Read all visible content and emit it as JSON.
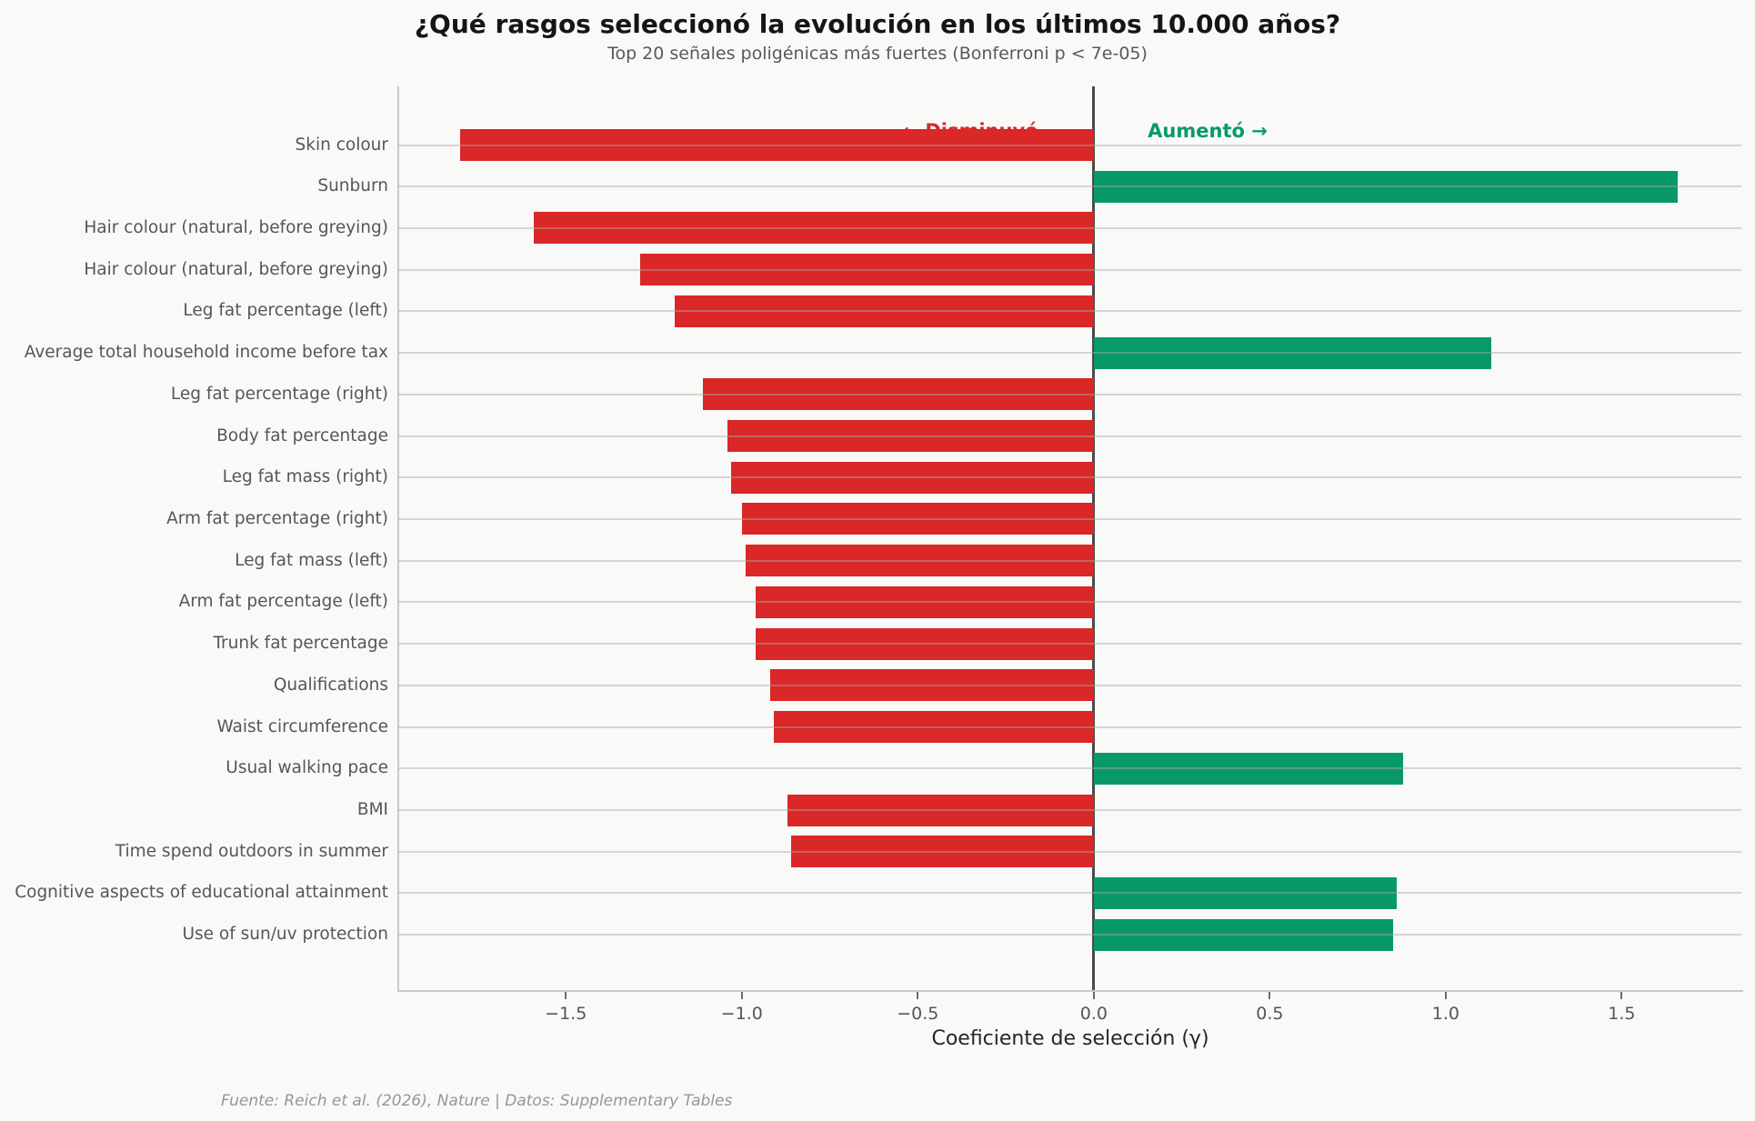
{
  "title": "¿Qué rasgos seleccionó la evolución en los últimos 10.000 años?",
  "subtitle": "Top 20 señales poligénicas más fuertes (Bonferroni p < 7e-05)",
  "annotations": {
    "decrease": "← Disminuyó",
    "increase": "Aumentó →"
  },
  "source": "Fuente: Reich et al. (2026), Nature | Datos: Supplementary Tables",
  "colors": {
    "increase": "#089968",
    "decrease": "#da2727",
    "background": "#f9f9f8",
    "zero_line": "#4a4a4a"
  },
  "chart_data": {
    "type": "bar",
    "orientation": "horizontal",
    "title": "¿Qué rasgos seleccionó la evolución en los últimos 10.000 años?",
    "subtitle": "Top 20 señales poligénicas más fuertes (Bonferroni p < 7e-05)",
    "xlabel": "Coeficiente de selección (γ)",
    "ylabel": "",
    "grid": "horizontal",
    "legend": false,
    "xlim": [
      -1.976,
      1.84
    ],
    "xticks": {
      "values": [
        -1.5,
        -1.0,
        -0.5,
        0.0,
        0.5,
        1.0,
        1.5
      ],
      "labels": [
        "−1.5",
        "−1.0",
        "−0.5",
        "0.0",
        "0.5",
        "1.0",
        "1.5"
      ]
    },
    "categories": [
      "Skin colour",
      "Sunburn",
      "Hair colour (natural, before greying)",
      "Hair colour (natural, before greying)",
      "Leg fat percentage (left)",
      "Average total household income before tax",
      "Leg fat percentage (right)",
      "Body fat percentage",
      "Leg fat mass (right)",
      "Arm fat percentage (right)",
      "Leg fat mass (left)",
      "Arm fat percentage (left)",
      "Trunk fat percentage",
      "Qualifications",
      "Waist circumference",
      "Usual walking pace",
      "BMI",
      "Time spend outdoors in summer",
      "Cognitive aspects of educational attainment",
      "Use of sun/uv protection"
    ],
    "values": [
      -1.8,
      1.66,
      -1.59,
      -1.29,
      -1.19,
      1.13,
      -1.11,
      -1.04,
      -1.03,
      -1.0,
      -0.99,
      -0.96,
      -0.96,
      -0.92,
      -0.91,
      0.88,
      -0.87,
      -0.86,
      0.86,
      0.85
    ]
  }
}
